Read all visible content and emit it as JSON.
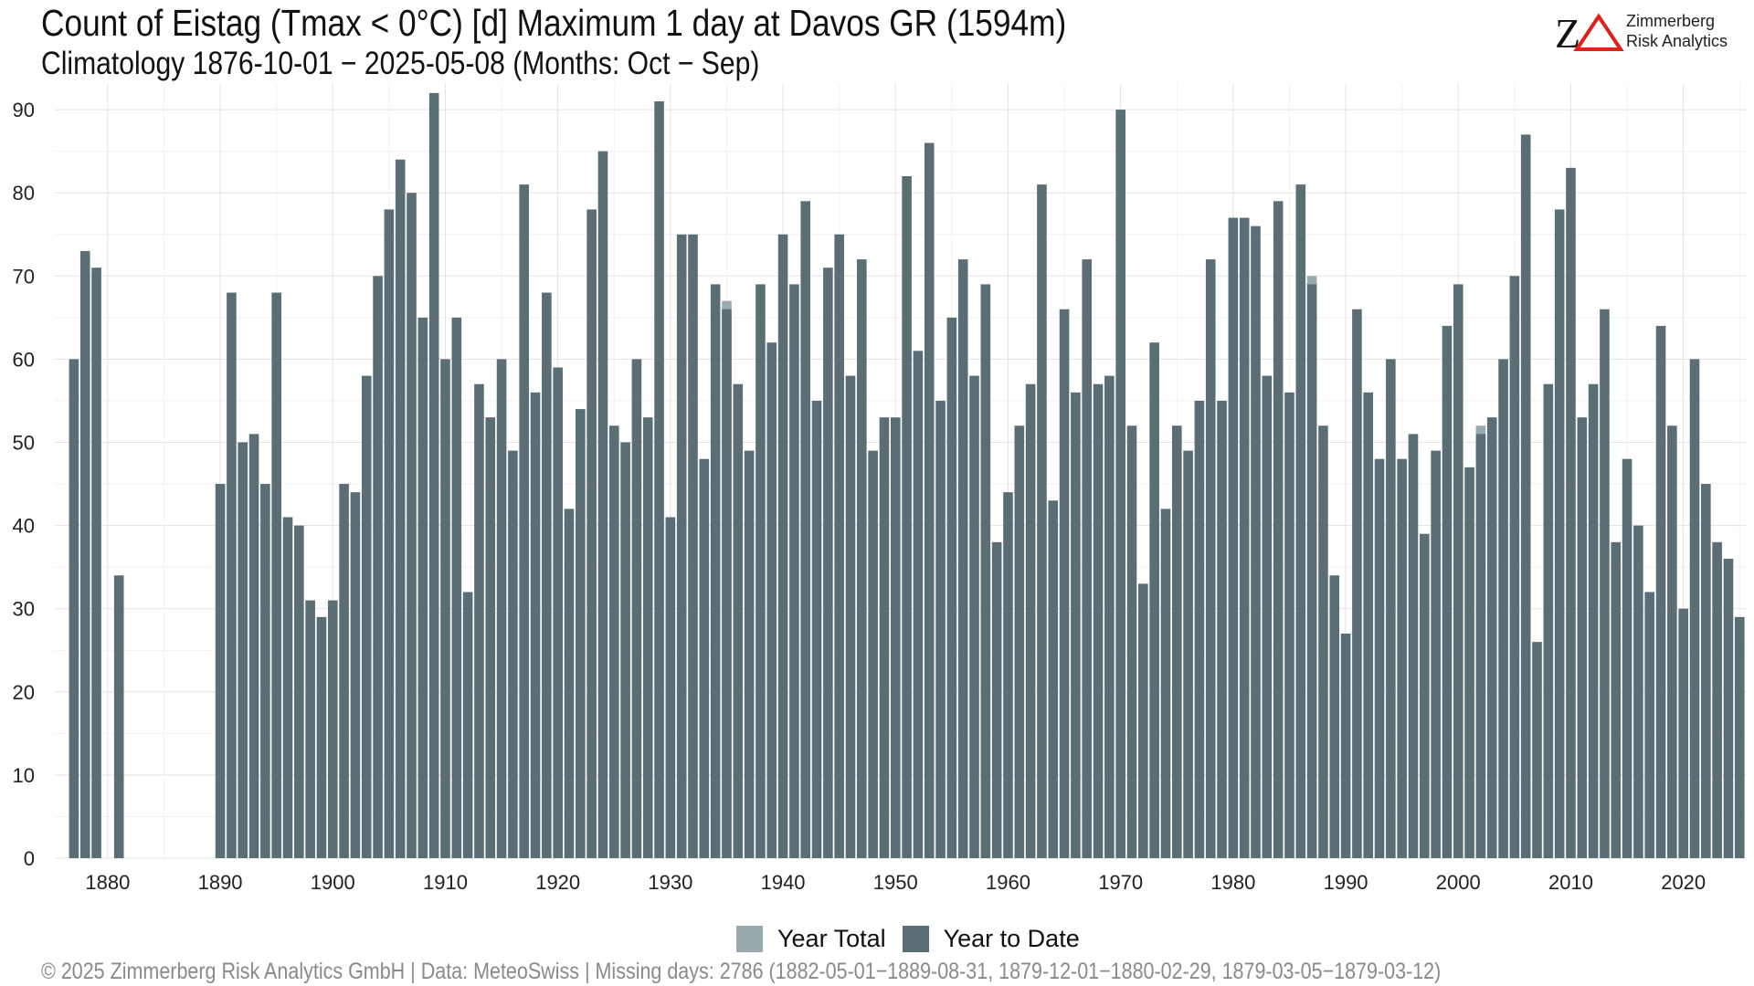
{
  "chart_data": {
    "type": "bar",
    "title": "Count of Eistag (Tmax < 0°C) [d] Maximum 1 day at Davos  GR (1594m)",
    "subtitle": "Climatology 1876-10-01 − 2025-05-08 (Months: Oct − Sep)",
    "xlabel": "",
    "ylabel": "",
    "xlim": [
      1876,
      2025
    ],
    "ylim": [
      0,
      92
    ],
    "yticks": [
      0,
      10,
      20,
      30,
      40,
      50,
      60,
      70,
      80,
      90
    ],
    "xticks": [
      1880,
      1890,
      1900,
      1910,
      1920,
      1930,
      1940,
      1950,
      1960,
      1970,
      1980,
      1990,
      2000,
      2010,
      2020
    ],
    "grid": true,
    "legend_position": "bottom",
    "series": [
      {
        "name": "Year Total",
        "color": "#9aa9ae",
        "points": [
          [
            1935,
            67
          ],
          [
            1987,
            70
          ],
          [
            2002,
            52
          ]
        ]
      },
      {
        "name": "Year to Date",
        "color": "#5b6e75",
        "points": [
          [
            1877,
            60
          ],
          [
            1878,
            73
          ],
          [
            1879,
            71
          ],
          [
            1881,
            34
          ],
          [
            1890,
            45
          ],
          [
            1891,
            68
          ],
          [
            1892,
            50
          ],
          [
            1893,
            51
          ],
          [
            1894,
            45
          ],
          [
            1895,
            68
          ],
          [
            1896,
            41
          ],
          [
            1897,
            40
          ],
          [
            1898,
            31
          ],
          [
            1899,
            29
          ],
          [
            1900,
            31
          ],
          [
            1901,
            45
          ],
          [
            1902,
            44
          ],
          [
            1903,
            58
          ],
          [
            1904,
            70
          ],
          [
            1905,
            78
          ],
          [
            1906,
            84
          ],
          [
            1907,
            80
          ],
          [
            1908,
            65
          ],
          [
            1909,
            92
          ],
          [
            1910,
            60
          ],
          [
            1911,
            65
          ],
          [
            1912,
            32
          ],
          [
            1913,
            57
          ],
          [
            1914,
            53
          ],
          [
            1915,
            60
          ],
          [
            1916,
            49
          ],
          [
            1917,
            81
          ],
          [
            1918,
            56
          ],
          [
            1919,
            68
          ],
          [
            1920,
            59
          ],
          [
            1921,
            42
          ],
          [
            1922,
            54
          ],
          [
            1923,
            78
          ],
          [
            1924,
            85
          ],
          [
            1925,
            52
          ],
          [
            1926,
            50
          ],
          [
            1927,
            60
          ],
          [
            1928,
            53
          ],
          [
            1929,
            91
          ],
          [
            1930,
            41
          ],
          [
            1931,
            75
          ],
          [
            1932,
            75
          ],
          [
            1933,
            48
          ],
          [
            1934,
            69
          ],
          [
            1935,
            66
          ],
          [
            1936,
            57
          ],
          [
            1937,
            49
          ],
          [
            1938,
            69
          ],
          [
            1939,
            62
          ],
          [
            1940,
            75
          ],
          [
            1941,
            69
          ],
          [
            1942,
            79
          ],
          [
            1943,
            55
          ],
          [
            1944,
            71
          ],
          [
            1945,
            75
          ],
          [
            1946,
            58
          ],
          [
            1947,
            72
          ],
          [
            1948,
            49
          ],
          [
            1949,
            53
          ],
          [
            1950,
            53
          ],
          [
            1951,
            82
          ],
          [
            1952,
            61
          ],
          [
            1953,
            86
          ],
          [
            1954,
            55
          ],
          [
            1955,
            65
          ],
          [
            1956,
            72
          ],
          [
            1957,
            58
          ],
          [
            1958,
            69
          ],
          [
            1959,
            38
          ],
          [
            1960,
            44
          ],
          [
            1961,
            52
          ],
          [
            1962,
            57
          ],
          [
            1963,
            81
          ],
          [
            1964,
            43
          ],
          [
            1965,
            66
          ],
          [
            1966,
            56
          ],
          [
            1967,
            72
          ],
          [
            1968,
            57
          ],
          [
            1969,
            58
          ],
          [
            1970,
            90
          ],
          [
            1971,
            52
          ],
          [
            1972,
            33
          ],
          [
            1973,
            62
          ],
          [
            1974,
            42
          ],
          [
            1975,
            52
          ],
          [
            1976,
            49
          ],
          [
            1977,
            55
          ],
          [
            1978,
            72
          ],
          [
            1979,
            55
          ],
          [
            1980,
            77
          ],
          [
            1981,
            77
          ],
          [
            1982,
            76
          ],
          [
            1983,
            58
          ],
          [
            1984,
            79
          ],
          [
            1985,
            56
          ],
          [
            1986,
            81
          ],
          [
            1987,
            69
          ],
          [
            1988,
            52
          ],
          [
            1989,
            34
          ],
          [
            1990,
            27
          ],
          [
            1991,
            66
          ],
          [
            1992,
            56
          ],
          [
            1993,
            48
          ],
          [
            1994,
            60
          ],
          [
            1995,
            48
          ],
          [
            1996,
            51
          ],
          [
            1997,
            39
          ],
          [
            1998,
            49
          ],
          [
            1999,
            64
          ],
          [
            2000,
            69
          ],
          [
            2001,
            47
          ],
          [
            2002,
            51
          ],
          [
            2003,
            53
          ],
          [
            2004,
            60
          ],
          [
            2005,
            70
          ],
          [
            2006,
            87
          ],
          [
            2007,
            26
          ],
          [
            2008,
            57
          ],
          [
            2009,
            78
          ],
          [
            2010,
            83
          ],
          [
            2011,
            53
          ],
          [
            2012,
            57
          ],
          [
            2013,
            66
          ],
          [
            2014,
            38
          ],
          [
            2015,
            48
          ],
          [
            2016,
            40
          ],
          [
            2017,
            32
          ],
          [
            2018,
            64
          ],
          [
            2019,
            52
          ],
          [
            2020,
            30
          ],
          [
            2021,
            60
          ],
          [
            2022,
            45
          ],
          [
            2023,
            38
          ],
          [
            2024,
            36
          ],
          [
            2025,
            29
          ]
        ]
      }
    ]
  },
  "logo": {
    "mark": "ZΔ",
    "name_line1": "Zimmerberg",
    "name_line2": "Risk Analytics",
    "mark_color_z": "#111111",
    "mark_color_delta": "#e0201b"
  },
  "footer": {
    "text": "©  2025 Zimmerberg Risk Analytics GmbH | Data: MeteoSwiss | Missing days: 2786 (1882-05-01−1889-08-31, 1879-12-01−1880-02-29, 1879-03-05−1879-03-12)"
  }
}
